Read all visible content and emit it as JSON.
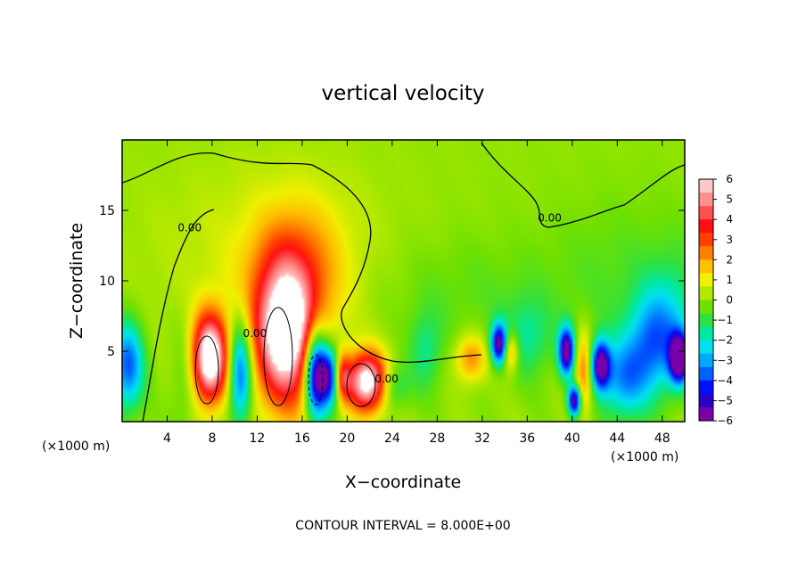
{
  "chart_data": {
    "type": "heatmap",
    "title": "vertical velocity",
    "xlabel": "X−coordinate",
    "ylabel": "Z−coordinate",
    "xlim": [
      0,
      50
    ],
    "ylim": [
      0,
      20
    ],
    "x_ticks": [
      4,
      8,
      12,
      16,
      20,
      24,
      28,
      32,
      36,
      40,
      44,
      48
    ],
    "y_ticks": [
      5,
      10,
      15
    ],
    "x_unit_label": "(×1000 m)",
    "y_unit_label": "(×1000 m)",
    "footer": "CONTOUR INTERVAL = 8.000E+00",
    "contour_labels": [
      {
        "text": "0.00",
        "x": 6.0,
        "y": 13.5
      },
      {
        "text": "0.00",
        "x": 38.0,
        "y": 14.2
      },
      {
        "text": "0.00",
        "x": 11.8,
        "y": 6.0
      },
      {
        "text": "0.00",
        "x": 23.5,
        "y": 2.8
      }
    ],
    "colorbar": {
      "labels": [
        "6",
        "5",
        "4",
        "3",
        "2",
        "1",
        "0",
        "−1",
        "−2",
        "−3",
        "−4",
        "−5",
        "−6"
      ],
      "min": -6,
      "max": 6,
      "colors": [
        "#7a00a8",
        "#2a00c8",
        "#0010ff",
        "#0060ff",
        "#00a8ff",
        "#00e0f0",
        "#00e8a0",
        "#30e040",
        "#70e000",
        "#b0e800",
        "#f0f000",
        "#ffc000",
        "#ff8000",
        "#ff4000",
        "#ff1010",
        "#ff5050",
        "#ff9090",
        "#ffc8c8"
      ]
    },
    "features": [
      {
        "x": 7.8,
        "z": 4.5,
        "sx": 1.1,
        "sz": 2.2,
        "amp": 7.5
      },
      {
        "x": 14.5,
        "z": 6.0,
        "sx": 1.9,
        "sz": 3.5,
        "amp": 7.0
      },
      {
        "x": 15.5,
        "z": 10.5,
        "sx": 3.0,
        "sz": 3.5,
        "amp": 2.2
      },
      {
        "x": 13.0,
        "z": 12.0,
        "sx": 8.0,
        "sz": 5.0,
        "amp": 0.7
      },
      {
        "x": 21.8,
        "z": 2.8,
        "sx": 1.3,
        "sz": 1.5,
        "amp": 7.0
      },
      {
        "x": 5.5,
        "z": 3.0,
        "sx": 0.8,
        "sz": 3.0,
        "amp": -0.8
      },
      {
        "x": 10.5,
        "z": 3.5,
        "sx": 0.7,
        "sz": 2.5,
        "amp": -4.5
      },
      {
        "x": 17.2,
        "z": 3.5,
        "sx": 0.7,
        "sz": 2.2,
        "amp": -7.0
      },
      {
        "x": 18.5,
        "z": 3.2,
        "sx": 0.7,
        "sz": 1.5,
        "amp": -5.5
      },
      {
        "x": 19.5,
        "z": 3.2,
        "sx": 0.5,
        "sz": 1.2,
        "amp": 4.0
      },
      {
        "x": 0.5,
        "z": 4.0,
        "sx": 1.0,
        "sz": 2.2,
        "amp": -4.0
      },
      {
        "x": 24.0,
        "z": 2.5,
        "sx": 1.0,
        "sz": 1.2,
        "amp": -2.0
      },
      {
        "x": 27.0,
        "z": 5.0,
        "sx": 1.0,
        "sz": 2.0,
        "amp": -1.5
      },
      {
        "x": 31.0,
        "z": 4.5,
        "sx": 1.0,
        "sz": 1.2,
        "amp": 2.5
      },
      {
        "x": 33.5,
        "z": 5.5,
        "sx": 0.5,
        "sz": 1.0,
        "amp": -6.0
      },
      {
        "x": 34.5,
        "z": 5.0,
        "sx": 0.5,
        "sz": 1.0,
        "amp": 3.0
      },
      {
        "x": 36.0,
        "z": 6.0,
        "sx": 1.5,
        "sz": 2.0,
        "amp": -1.5
      },
      {
        "x": 39.5,
        "z": 5.0,
        "sx": 0.5,
        "sz": 1.2,
        "amp": -6.5
      },
      {
        "x": 40.2,
        "z": 1.5,
        "sx": 0.4,
        "sz": 0.8,
        "amp": -6.5
      },
      {
        "x": 41.0,
        "z": 3.5,
        "sx": 0.6,
        "sz": 2.0,
        "amp": 3.0
      },
      {
        "x": 42.5,
        "z": 4.0,
        "sx": 0.6,
        "sz": 1.2,
        "amp": -6.0
      },
      {
        "x": 44.5,
        "z": 3.0,
        "sx": 1.5,
        "sz": 2.0,
        "amp": -3.0
      },
      {
        "x": 47.0,
        "z": 5.5,
        "sx": 1.5,
        "sz": 2.5,
        "amp": -3.0
      },
      {
        "x": 49.5,
        "z": 4.5,
        "sx": 0.6,
        "sz": 1.2,
        "amp": -7.0
      },
      {
        "x": 49.0,
        "z": 7.0,
        "sx": 1.5,
        "sz": 3.0,
        "amp": -1.5
      },
      {
        "x": 30.0,
        "z": 9.0,
        "sx": 6.0,
        "sz": 3.0,
        "amp": -0.6
      },
      {
        "x": 45.0,
        "z": 10.0,
        "sx": 5.0,
        "sz": 4.0,
        "amp": -0.7
      }
    ]
  }
}
